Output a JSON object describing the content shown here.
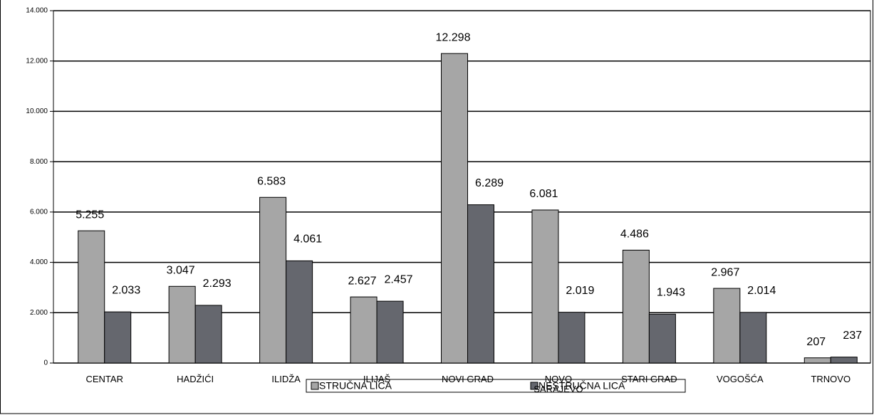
{
  "chart_data": {
    "type": "bar",
    "categories": [
      "CENTAR",
      "HADŽIĆI",
      "ILIDŽA",
      "ILIJAŠ",
      "NOVI GRAD",
      "NOVO SARAJEVO",
      "STARI GRAD",
      "VOGOŠĆA",
      "TRNOVO"
    ],
    "series": [
      {
        "name": "STRUČNA LICA",
        "color": "#a6a6a6",
        "values": [
          5255,
          3047,
          6583,
          2627,
          12298,
          6081,
          4486,
          2967,
          207
        ],
        "value_labels": [
          "5.255",
          "3.047",
          "6.583",
          "2.627",
          "12.298",
          "6.081",
          "4.486",
          "2.967",
          "207"
        ]
      },
      {
        "name": "NESTRUČNA LICA",
        "color": "#65676e",
        "values": [
          2033,
          2293,
          4061,
          2457,
          6289,
          2019,
          1943,
          2014,
          237
        ],
        "value_labels": [
          "2.033",
          "2.293",
          "4.061",
          "2.457",
          "6.289",
          "2.019",
          "1.943",
          "2.014",
          "237"
        ]
      }
    ],
    "ylim": [
      0,
      14000
    ],
    "yticks": [
      {
        "value": 0,
        "label": "0"
      },
      {
        "value": 2000,
        "label": "2.000"
      },
      {
        "value": 4000,
        "label": "4.000"
      },
      {
        "value": 6000,
        "label": "6.000"
      },
      {
        "value": 8000,
        "label": "8.000"
      },
      {
        "value": 10000,
        "label": "10.000"
      },
      {
        "value": 12000,
        "label": "12.000"
      },
      {
        "value": 14000,
        "label": "14.000"
      }
    ],
    "grid": true,
    "legend": "bottom"
  }
}
